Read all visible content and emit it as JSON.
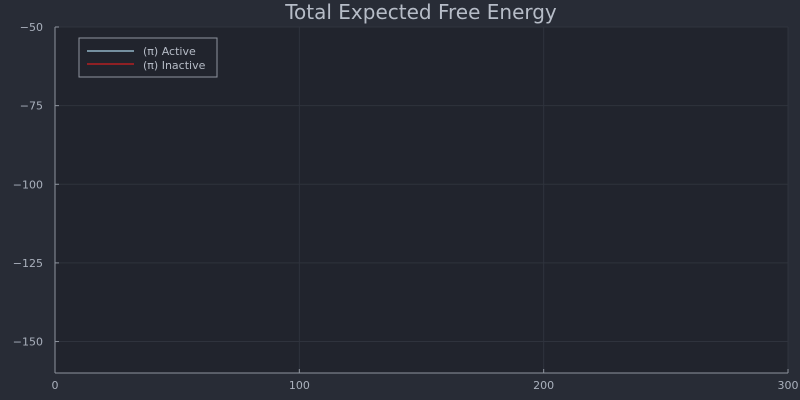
{
  "colors": {
    "background": "#282c36",
    "plot_background": "#21242d",
    "grid": "#2f333d",
    "axis": "#8e949e",
    "text": "#a9b0bc",
    "title": "#b6bcc7",
    "legend_border": "#8e949e"
  },
  "chart_data": {
    "type": "line",
    "title": "Total Expected Free Energy",
    "xlabel": "",
    "ylabel": "",
    "xlim": [
      0,
      300
    ],
    "ylim": [
      -160,
      -50
    ],
    "xticks": [
      0,
      100,
      200,
      300
    ],
    "xtick_labels": [
      "0",
      "100",
      "200",
      "300"
    ],
    "yticks": [
      -50,
      -75,
      -100,
      -125,
      -150
    ],
    "ytick_labels": [
      "−50",
      "−75",
      "−100",
      "−125",
      "−150"
    ],
    "grid": true,
    "legend_position": "top-left",
    "series": [
      {
        "name": "(π) Active",
        "color": "#a8d1e6",
        "x": [],
        "y": []
      },
      {
        "name": "(π) Inactive",
        "color": "#d11f1f",
        "x": [],
        "y": []
      }
    ]
  }
}
